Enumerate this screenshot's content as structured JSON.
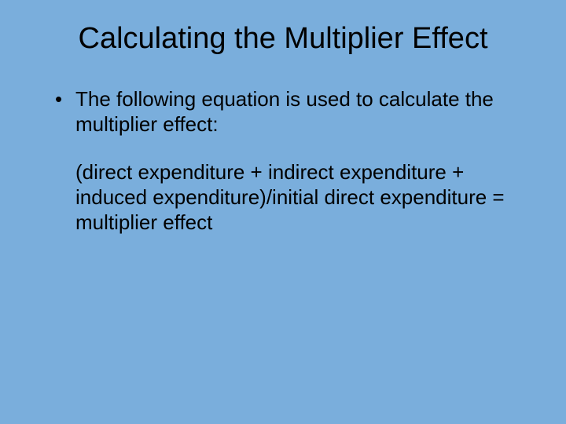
{
  "slide": {
    "background_color": "#7aaedc",
    "text_color": "#000000",
    "title": "Calculating the Multiplier Effect",
    "title_fontsize": 38,
    "body_fontsize": 26,
    "bullet_text": "The following equation is used to calculate the multiplier effect:",
    "equation_text": "(direct expenditure + indirect expenditure + induced expenditure)/initial direct expenditure = multiplier effect"
  }
}
